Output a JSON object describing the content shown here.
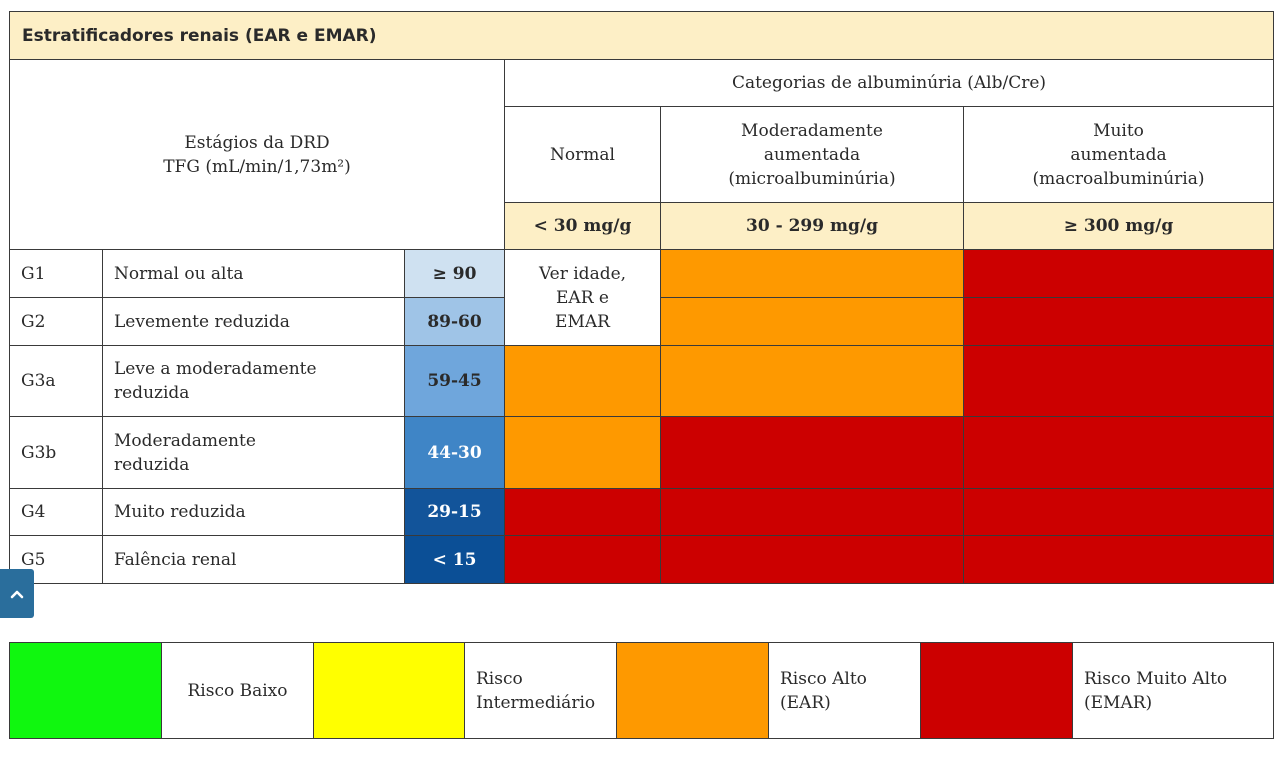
{
  "table": {
    "title": "Estratificadores renais (EAR e EMAR)",
    "stages_header": "Estágios da DRD\nTFG (mL/min/1,73m²)",
    "albuminuria_header": "Categorias de albuminúria (Alb/Cre)",
    "categories": [
      {
        "label": "Normal",
        "range": "< 30 mg/g"
      },
      {
        "label": "Moderadamente\naumentada\n(microalbuminúria)",
        "range": "30 - 299 mg/g"
      },
      {
        "label": "Muito\naumentada\n(macroalbuminúria)",
        "range": "≥ 300 mg/g"
      }
    ],
    "rows": [
      {
        "stage": "G1",
        "description": "Normal ou alta",
        "gfr": "≥ 90",
        "gfr_color": "#cfe1f1"
      },
      {
        "stage": "G2",
        "description": "Levemente reduzida",
        "gfr": "89-60",
        "gfr_color": "#9fc4e7"
      },
      {
        "stage": "G3a",
        "description": "Leve a moderadamente\nreduzida",
        "gfr": "59-45",
        "gfr_color": "#6fa6dc"
      },
      {
        "stage": "G3b",
        "description": "Moderadamente\nreduzida",
        "gfr": "44-30",
        "gfr_color": "#3f85c6"
      },
      {
        "stage": "G4",
        "description": "Muito reduzida",
        "gfr": "29-15",
        "gfr_color": "#12549a"
      },
      {
        "stage": "G5",
        "description": "Falência renal",
        "gfr": "< 15",
        "gfr_color": "#0b4f96"
      }
    ],
    "normal_note": "Ver idade,\nEAR e\nEMAR"
  },
  "legend": [
    {
      "color": "#10f70f",
      "label": "Risco Baixo"
    },
    {
      "color": "#ffff00",
      "label": "Risco\nIntermediário"
    },
    {
      "color": "#fe9900",
      "label": "Risco Alto\n(EAR)"
    },
    {
      "color": "#cc0000",
      "label": "Risco Muito Alto\n(EMAR)"
    }
  ],
  "colors": {
    "header_bg": "#fdefc6",
    "orange": "#fe9900",
    "red": "#cc0000",
    "scroll_button": "#2a6e9c"
  },
  "scroll_top": {
    "icon": "chevron-up-icon"
  }
}
